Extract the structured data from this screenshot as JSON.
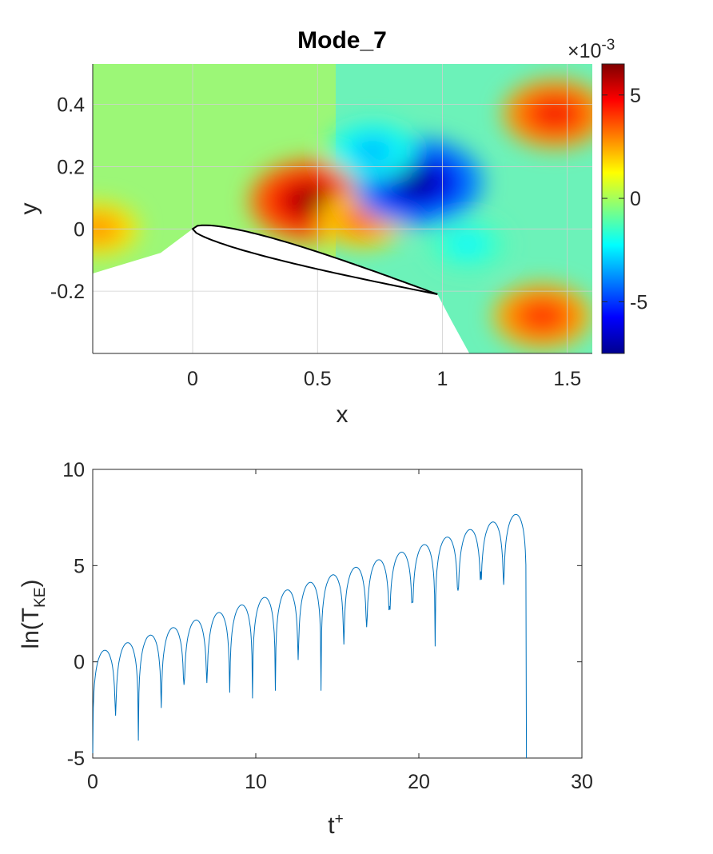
{
  "chart_data": [
    {
      "type": "heatmap",
      "title": "Mode_7",
      "xlabel": "x",
      "ylabel": "y",
      "xlim": [
        -0.4,
        1.6
      ],
      "ylim": [
        -0.4,
        0.53
      ],
      "xticks": [
        0,
        0.5,
        1,
        1.5
      ],
      "xtick_labels": [
        "0",
        "0.5",
        "1",
        "1.5"
      ],
      "yticks": [
        -0.2,
        0,
        0.2,
        0.4
      ],
      "ytick_labels": [
        "-0.2",
        "0",
        "0.2",
        "0.4"
      ],
      "grid": true,
      "colormap": "jet",
      "colorbar": {
        "clim": [
          -7.5,
          6.5
        ],
        "ticks": [
          -5,
          0,
          5
        ],
        "tick_labels": [
          "-5",
          "0",
          "5"
        ],
        "exponent_base": "×10",
        "exponent_power": "-3"
      },
      "blobs": [
        {
          "x": 0.47,
          "y": 0.09,
          "value": 6.5
        },
        {
          "x": 0.68,
          "y": 0.03,
          "value": 3.5
        },
        {
          "x": 0.9,
          "y": 0.15,
          "value": -7.5
        },
        {
          "x": 0.72,
          "y": 0.25,
          "value": -3.5
        },
        {
          "x": 1.45,
          "y": 0.37,
          "value": 5.0
        },
        {
          "x": 1.4,
          "y": -0.28,
          "value": 4.5
        },
        {
          "x": -0.38,
          "y": 0.0,
          "value": 3.0
        },
        {
          "x": 1.1,
          "y": -0.05,
          "value": -2.5
        }
      ],
      "airfoil": {
        "leading_edge": [
          0,
          0
        ],
        "trailing_edge": [
          0.98,
          -0.21
        ],
        "thickness": 0.055
      }
    },
    {
      "type": "line",
      "xlabel": "t",
      "xlabel_superscript": "+",
      "ylabel_prefix": "ln(T",
      "ylabel_subscript": "KE",
      "ylabel_suffix": ")",
      "xlim": [
        0,
        30
      ],
      "ylim": [
        -5,
        10
      ],
      "xticks": [
        0,
        10,
        20,
        30
      ],
      "xtick_labels": [
        "0",
        "10",
        "20",
        "30"
      ],
      "yticks": [
        -5,
        0,
        5,
        10
      ],
      "ytick_labels": [
        "-5",
        "0",
        "5",
        "10"
      ],
      "grid": false,
      "line_color": "#0072BD",
      "series": [
        {
          "period": 1.4,
          "t_end": 26.9,
          "envelope_start": 0.4,
          "envelope_slope": 0.28,
          "dip_minima": [
            -2.8,
            -4.1,
            -2.4,
            -1.2,
            -1.1,
            -1.6,
            -1.9,
            -1.5,
            0.1,
            -1.5,
            0.9,
            1.8,
            2.9,
            3.1,
            0.8,
            3.7,
            4.7,
            4.0
          ]
        }
      ]
    }
  ]
}
